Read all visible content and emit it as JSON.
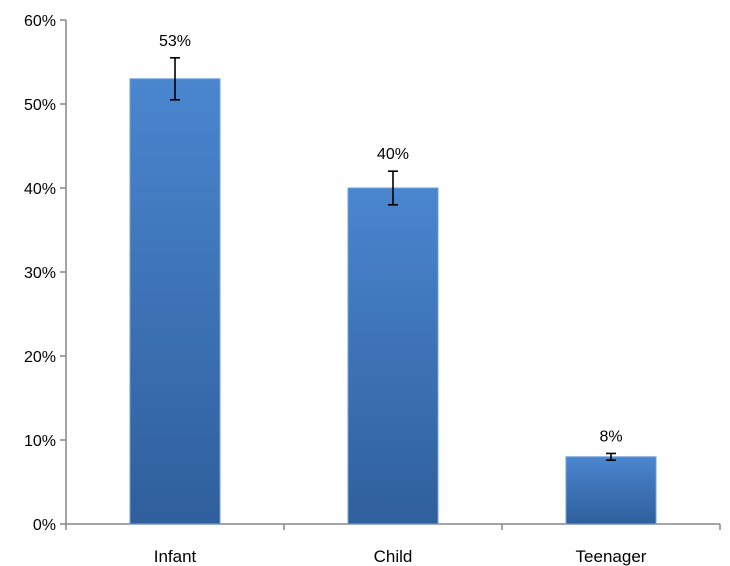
{
  "chart_data": {
    "type": "bar",
    "title": "",
    "xlabel": "",
    "ylabel": "",
    "categories": [
      "Infant",
      "Child",
      "Teenager"
    ],
    "values": [
      53,
      40,
      8
    ],
    "data_labels": [
      "53%",
      "40%",
      "8%"
    ],
    "error_bars": [
      {
        "low": 50.5,
        "high": 55.5
      },
      {
        "low": 38,
        "high": 42
      },
      {
        "low": 7.6,
        "high": 8.4
      }
    ],
    "ylim": [
      0,
      60
    ],
    "yticks": [
      0,
      10,
      20,
      30,
      40,
      50,
      60
    ],
    "ytick_labels": [
      "0%",
      "10%",
      "20%",
      "30%",
      "40%",
      "50%",
      "60%"
    ],
    "grid": false,
    "legend": "none",
    "colors": {
      "bar_top": "#4a86cf",
      "bar_bottom": "#2f5f9c",
      "bar_edge": "#6fa0d8",
      "axis": "#868686"
    }
  }
}
